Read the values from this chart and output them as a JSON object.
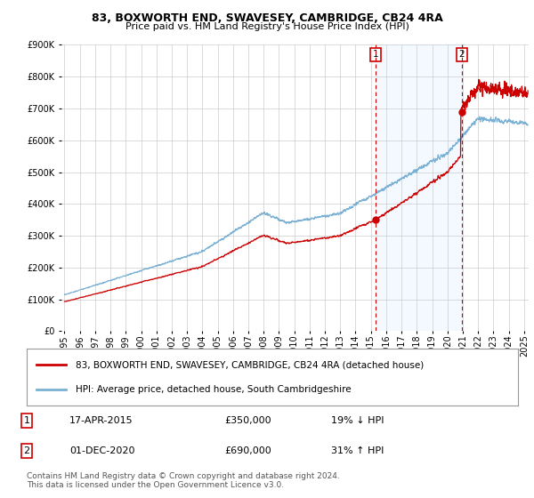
{
  "title": "83, BOXWORTH END, SWAVESEY, CAMBRIDGE, CB24 4RA",
  "subtitle": "Price paid vs. HM Land Registry's House Price Index (HPI)",
  "legend_property": "83, BOXWORTH END, SWAVESEY, CAMBRIDGE, CB24 4RA (detached house)",
  "legend_hpi": "HPI: Average price, detached house, South Cambridgeshire",
  "event1_date": "17-APR-2015",
  "event1_price": "£350,000",
  "event1_hpi": "19% ↓ HPI",
  "event1_year": 2015.29,
  "event1_value": 350000,
  "event2_date": "01-DEC-2020",
  "event2_price": "£690,000",
  "event2_hpi": "31% ↑ HPI",
  "event2_year": 2020.92,
  "event2_value": 690000,
  "footer": "Contains HM Land Registry data © Crown copyright and database right 2024.\nThis data is licensed under the Open Government Licence v3.0.",
  "property_color": "#cc0000",
  "hpi_color": "#7ab0d4",
  "shade_color": "#ddeeff",
  "background_color": "#ffffff",
  "ylim_max": 900000,
  "xlim_start": 1994.8,
  "xlim_end": 2025.3
}
